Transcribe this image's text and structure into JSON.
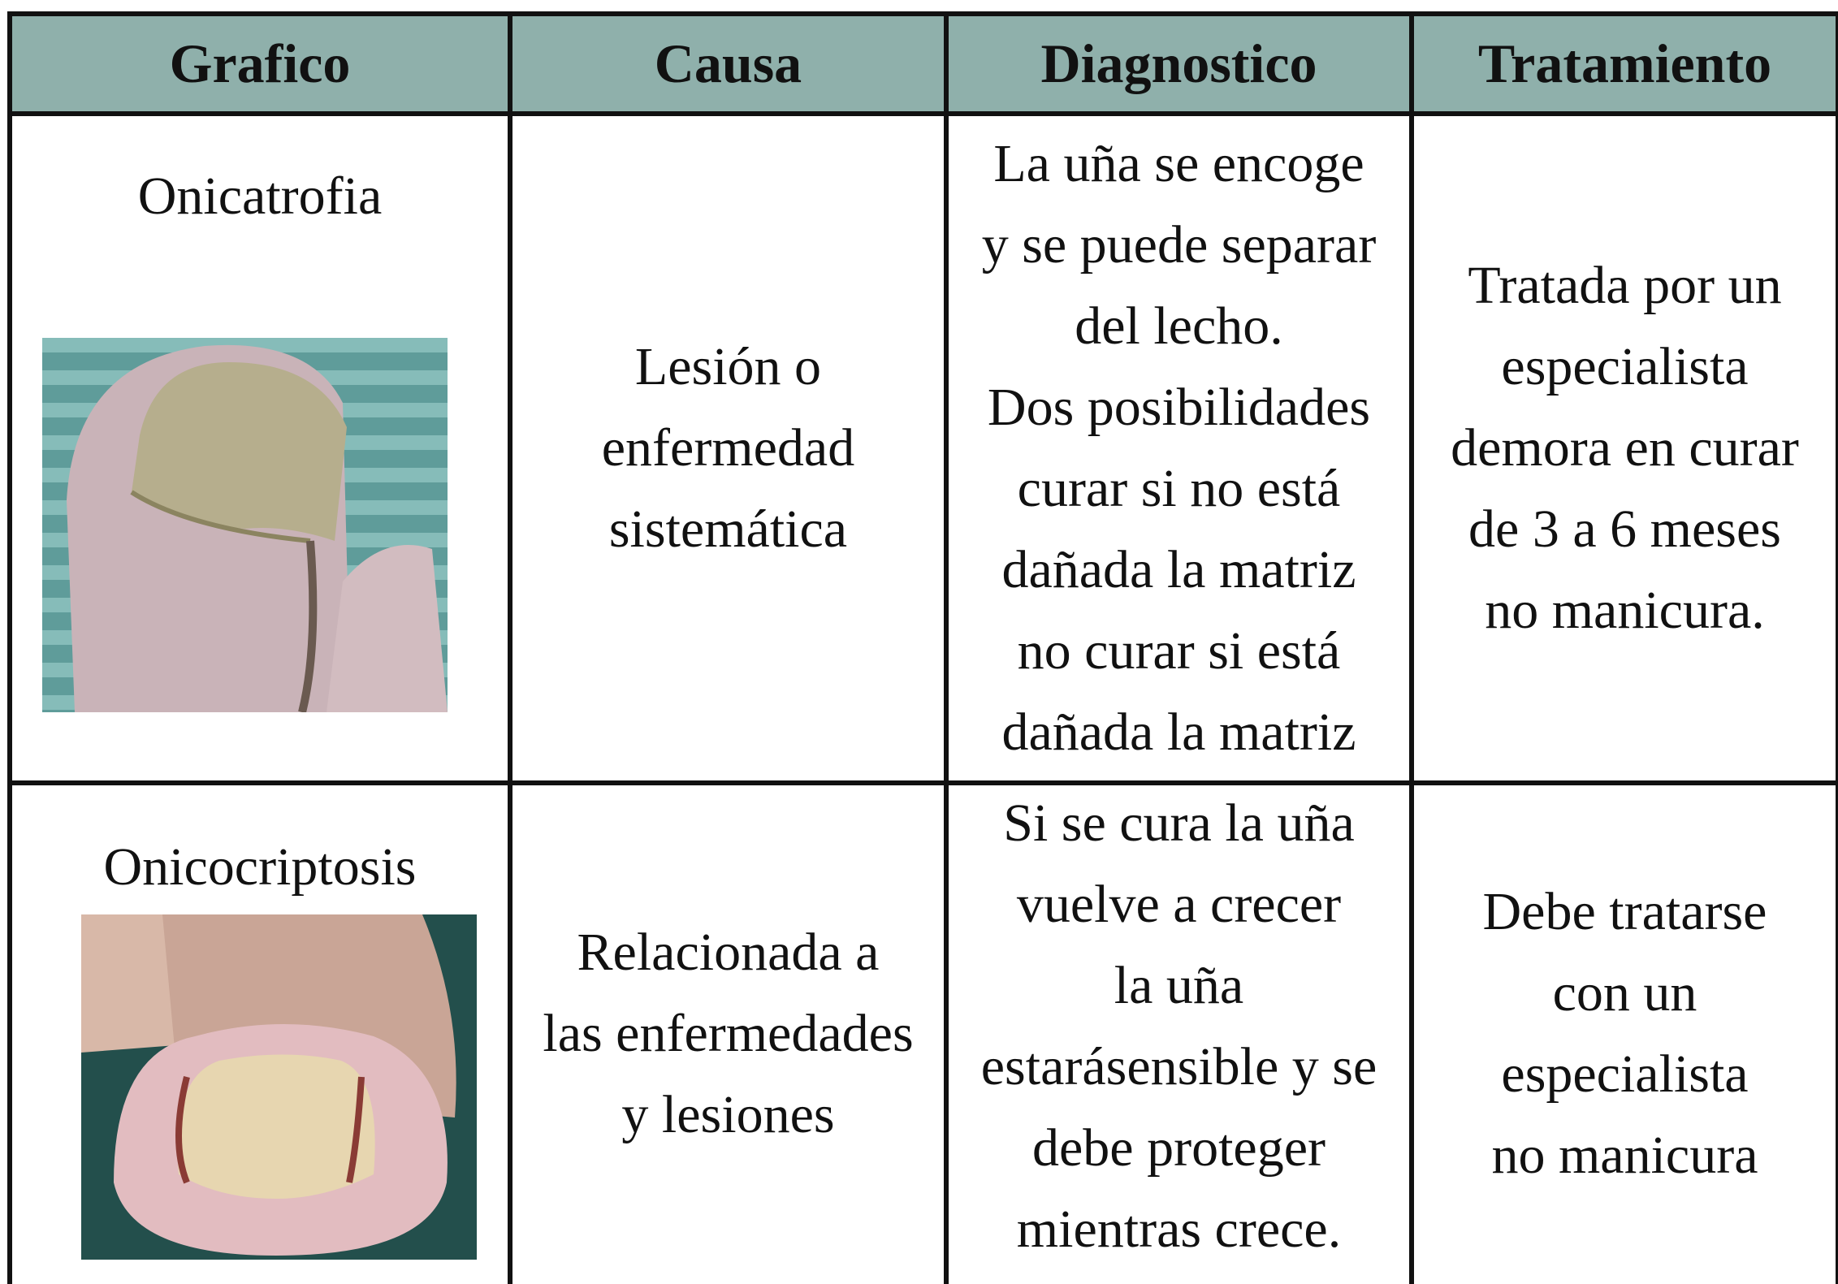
{
  "table": {
    "header": [
      "Grafico",
      "Causa",
      "Diagnostico",
      "Tratamiento"
    ],
    "rows": [
      {
        "name": "Onicatrofia",
        "causa": [
          "Lesión o",
          "enfermedad",
          "sistemática"
        ],
        "diagnostico": [
          "La uña se encoge",
          "y se puede separar",
          "del lecho.",
          "Dos posibilidades",
          "curar si no está",
          "dañada la matriz",
          "no curar si está",
          "dañada la matriz"
        ],
        "tratamiento": [
          "Tratada por un",
          "especialista",
          "demora en curar",
          "de 3 a 6 meses",
          "no manicura."
        ]
      },
      {
        "name": "Onicocriptosis",
        "causa": [
          "Relacionada a",
          "las enfermedades",
          "y lesiones"
        ],
        "diagnostico": [
          "Si se cura la uña",
          "vuelve a crecer",
          "la uña",
          "estarásensible y se",
          "debe proteger",
          "mientras crece."
        ],
        "tratamiento": [
          "Debe tratarse",
          "con un",
          "especialista",
          "no manicura"
        ]
      }
    ]
  }
}
